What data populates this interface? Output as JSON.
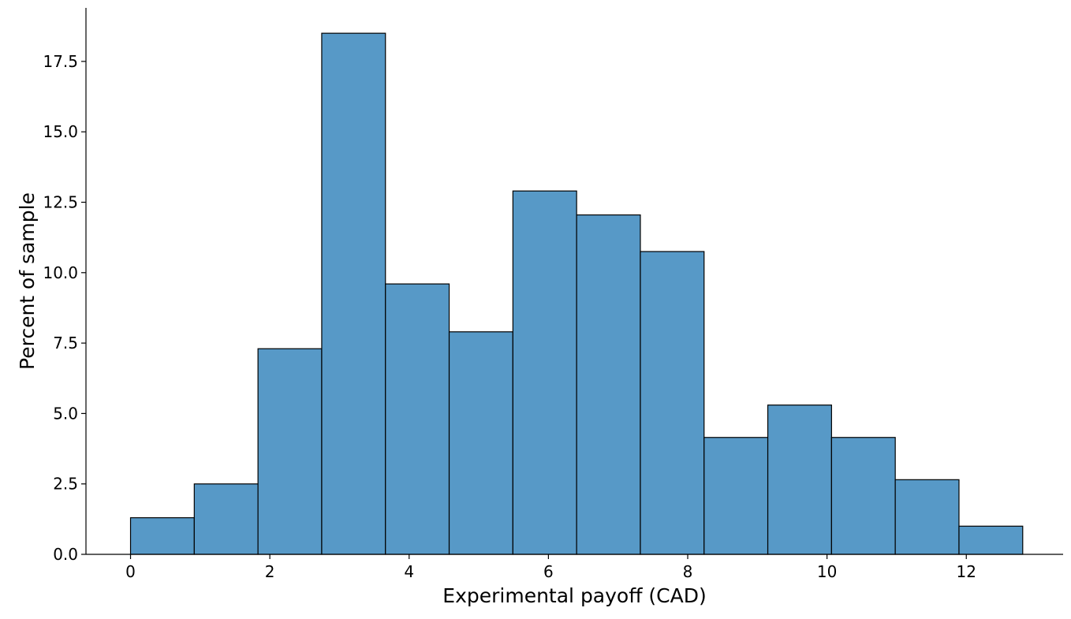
{
  "chart_data": {
    "type": "bar",
    "title": "",
    "xlabel": "Experimental payoff (CAD)",
    "ylabel": "Percent of sample",
    "bin_edges": [
      0,
      0.915,
      1.83,
      2.745,
      3.66,
      4.575,
      5.49,
      6.405,
      7.32,
      8.235,
      9.15,
      10.065,
      10.98,
      11.895,
      12.81
    ],
    "values": [
      1.3,
      2.5,
      7.3,
      18.5,
      9.6,
      7.9,
      12.9,
      12.05,
      10.75,
      4.15,
      5.3,
      4.15,
      2.65,
      1.0
    ],
    "xlim": [
      -0.64,
      13.39
    ],
    "ylim": [
      0,
      19.4
    ],
    "x_ticks": [
      0,
      2,
      4,
      6,
      8,
      10,
      12
    ],
    "x_tick_labels": [
      "0",
      "2",
      "4",
      "6",
      "8",
      "10",
      "12"
    ],
    "y_ticks": [
      0,
      2.5,
      5,
      7.5,
      10,
      12.5,
      15,
      17.5
    ],
    "y_tick_labels": [
      "0.0",
      "2.5",
      "5.0",
      "7.5",
      "10.0",
      "12.5",
      "15.0",
      "17.5"
    ],
    "grid": false,
    "bar_color": "#5799c7",
    "edge_color": "#000000"
  }
}
